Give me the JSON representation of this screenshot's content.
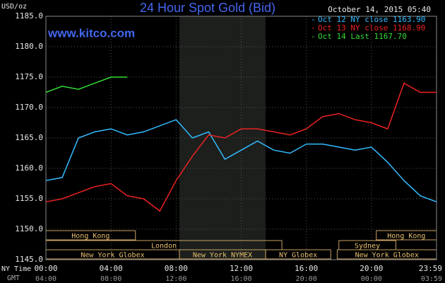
{
  "chart_data": {
    "type": "line",
    "title": "24 Hour Spot Gold (Bid)",
    "y_label": "USD/oz",
    "watermark": "www.kitco.com",
    "timestamp": "October 14, 2015 05:40",
    "x_row_label": "NY Time",
    "x2_row_label": "GMT",
    "x": [
      0,
      1,
      2,
      3,
      4,
      5,
      6,
      7,
      8,
      9,
      10,
      11,
      12,
      13,
      14,
      15,
      16,
      17,
      18,
      19,
      20,
      21,
      22,
      23,
      24
    ],
    "xlim": [
      0,
      24
    ],
    "xticks": [
      {
        "value": 0,
        "label": "00:00"
      },
      {
        "value": 4,
        "label": "04:00"
      },
      {
        "value": 8,
        "label": "08:00"
      },
      {
        "value": 12,
        "label": "12:00"
      },
      {
        "value": 16,
        "label": "16:00"
      },
      {
        "value": 20,
        "label": "20:00"
      },
      {
        "value": 24,
        "label": "23:59"
      }
    ],
    "gmt_labels": [
      "04:00",
      "08:00",
      "12:00",
      "16:00",
      "20:00",
      "00:00",
      "03:59"
    ],
    "ylim": [
      1145,
      1185
    ],
    "yticks": [
      {
        "value": 1145,
        "label": "1145.0"
      },
      {
        "value": 1150,
        "label": "1150.0"
      },
      {
        "value": 1155,
        "label": "1155.0"
      },
      {
        "value": 1160,
        "label": "1160.0"
      },
      {
        "value": 1165,
        "label": "1165.0"
      },
      {
        "value": 1170,
        "label": "1170.0"
      },
      {
        "value": 1175,
        "label": "1175.0"
      },
      {
        "value": 1180,
        "label": "1180.0"
      },
      {
        "value": 1185,
        "label": "1185.0"
      }
    ],
    "grid": true,
    "shaded_range": [
      8.2,
      13.5
    ],
    "series": [
      {
        "name": "Oct 12 NY close 1163.90",
        "color": "#33bbff",
        "values": [
          1158,
          1158.5,
          1165,
          1166,
          1166.5,
          1165.5,
          1166,
          1167,
          1168,
          1165,
          1166,
          1161.5,
          1163,
          1164.5,
          1163,
          1162.5,
          1164,
          1164,
          1163.5,
          1163,
          1163.5,
          1161,
          1158,
          1155.5,
          1154.5
        ]
      },
      {
        "name": "Oct 13 NY close 1168.90",
        "color": "#ee2222",
        "values": [
          1154.5,
          1155,
          1156,
          1157,
          1157.5,
          1155.5,
          1155,
          1153,
          1158,
          1162,
          1165.5,
          1165,
          1166.5,
          1166.5,
          1166,
          1165.5,
          1166.5,
          1168.5,
          1169,
          1168,
          1167.5,
          1166.5,
          1174,
          1172.5,
          1172.5
        ]
      },
      {
        "name": "Oct 14 Last 1167.70",
        "color": "#33dd33",
        "values": [
          1172.5,
          1173.5,
          1173,
          1174,
          1175,
          1175,
          null,
          null,
          null,
          null,
          null,
          null,
          null,
          null,
          null,
          null,
          null,
          null,
          null,
          null,
          null,
          null,
          null,
          null,
          null
        ]
      }
    ],
    "sessions": [
      {
        "label": "Hong Kong",
        "row": 0,
        "start": 0,
        "end": 5.5
      },
      {
        "label": "Hong Kong",
        "row": 0,
        "start": 20.3,
        "end": 24
      },
      {
        "label": "London",
        "row": 1,
        "start": 0,
        "end": 14.5
      },
      {
        "label": "Sydney",
        "row": 1,
        "start": 18,
        "end": 21.5
      },
      {
        "label": "New York Globex",
        "row": 2,
        "start": 0,
        "end": 8.2
      },
      {
        "label": "New York NYMEX",
        "row": 2,
        "start": 8.2,
        "end": 13.5
      },
      {
        "label": "NY Globex",
        "row": 2,
        "start": 13.5,
        "end": 17.5
      },
      {
        "label": "New York Globex",
        "row": 2,
        "start": 17.9,
        "end": 24
      }
    ]
  }
}
